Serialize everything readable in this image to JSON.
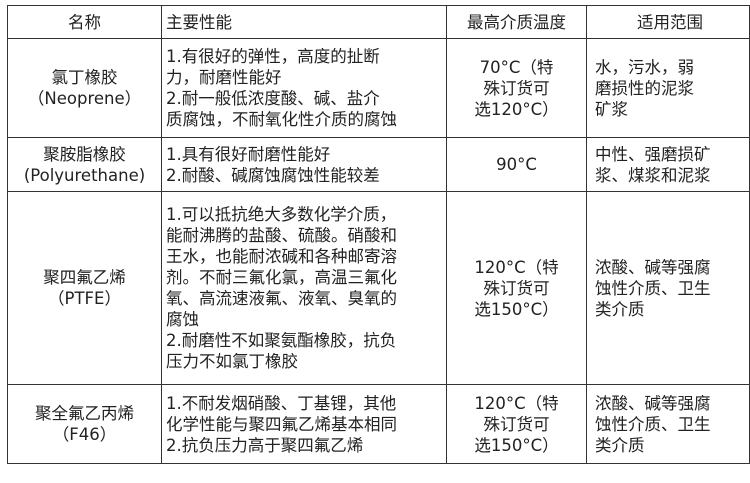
{
  "headers": [
    "名称",
    "主要性能",
    "最高介质温度",
    "适用范围"
  ],
  "rows": [
    {
      "name": [
        "氯丁橡胶",
        "（Neoprene）"
      ],
      "performance": [
        "1.有很好的弹性，高度的扯断",
        "力，耐磨性能好",
        "2.耐一般低浓度酸、碱、盐介",
        "质腐蚀，不耐氧化性介质的腐蚀"
      ],
      "temperature": [
        "70°C（特",
        "殊订货可",
        "选120°C）"
      ],
      "scope": [
        "水，污水，弱",
        "磨损性的泥浆",
        "矿浆"
      ]
    },
    {
      "name": [
        "聚胺脂橡胶",
        "(Polyurethane)"
      ],
      "performance": [
        "1.具有很好耐磨性能好",
        "2.耐酸、碱腐蚀腐蚀性能较差"
      ],
      "temperature": [
        "90°C"
      ],
      "scope": [
        "中性、强磨损矿",
        "浆、煤浆和泥浆"
      ]
    },
    {
      "name": [
        "聚四氟乙烯",
        "（PTFE）"
      ],
      "performance": [
        "1.可以抵抗绝大多数化学介质，",
        "能耐沸腾的盐酸、硫酸。硝酸和",
        "王水，也能耐浓碱和各种邮寄溶",
        "剂。不耐三氟化氯，高温三氟化",
        "氧、高流速液氟、液氧、臭氧的",
        "腐蚀",
        "2.耐磨性不如聚氨酯橡胶，抗负",
        "压力不如氯丁橡胶"
      ],
      "temperature": [
        "120°C（特",
        "殊订货可",
        "选150°C）"
      ],
      "scope": [
        "浓酸、碱等强腐",
        "蚀性介质、卫生",
        "类介质"
      ]
    },
    {
      "name": [
        "聚全氟乙丙烯",
        "（F46）"
      ],
      "performance": [
        "1.不耐发烟硝酸、丁基锂，其他",
        "化学性能与聚四氟乙烯基本相同",
        "2.抗负压力高于聚四氟乙烯"
      ],
      "temperature": [
        "120°C（特",
        "殊订货可",
        "选150°C）"
      ],
      "scope": [
        "浓酸、碱等强腐",
        "蚀性介质、卫生",
        "类介质"
      ]
    }
  ]
}
